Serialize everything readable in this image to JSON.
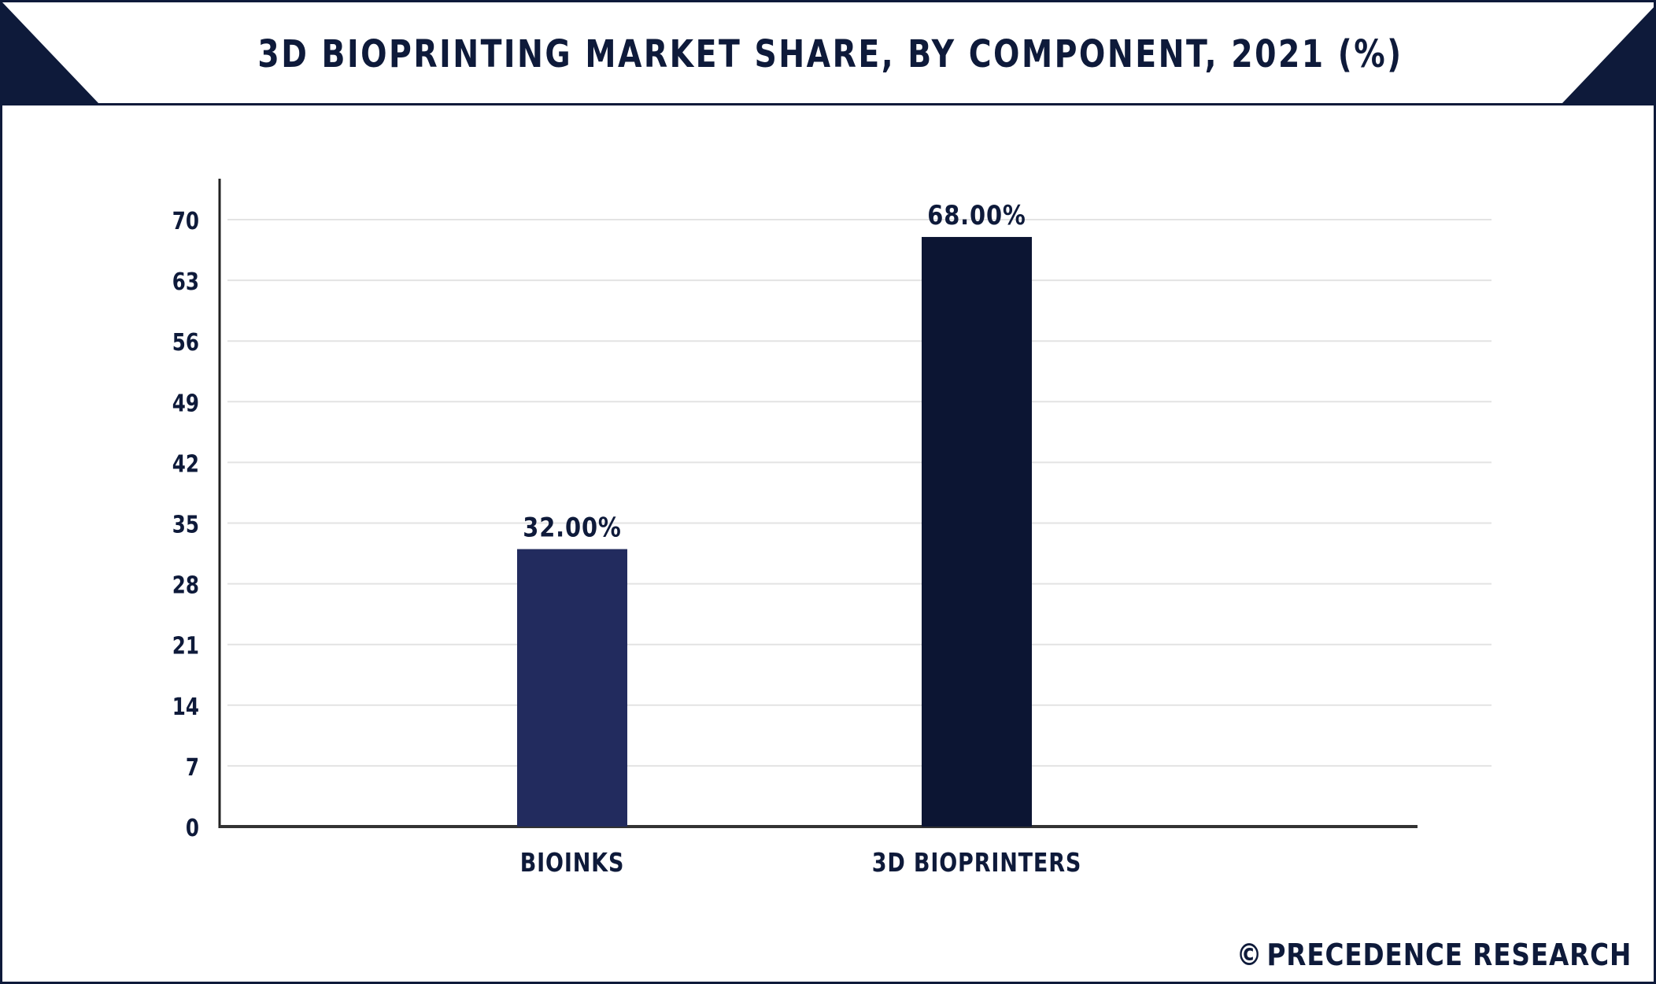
{
  "title": "3D BIOPRINTING MARKET SHARE, BY COMPONENT, 2021 (%)",
  "brand": {
    "symbol": "©",
    "name": "PRECEDENCE RESEARCH"
  },
  "colors": {
    "navy": "#0e1a3a",
    "bar1": "#222b5e",
    "bar2": "#0c1533",
    "grid": "#e3e3e3",
    "accent": "#4a5a96"
  },
  "chart_data": {
    "type": "bar",
    "title": "3D BIOPRINTING MARKET SHARE, BY COMPONENT, 2021 (%)",
    "categories": [
      "BIOINKS",
      "3D BIOPRINTERS"
    ],
    "values": [
      32,
      68
    ],
    "data_labels": [
      "32.00%",
      "68.00%"
    ],
    "bar_colors": [
      "#222b5e",
      "#0c1533"
    ],
    "ylim": [
      0,
      70
    ],
    "yticks": [
      0,
      7,
      14,
      21,
      28,
      35,
      42,
      49,
      56,
      63,
      70
    ],
    "grid": true,
    "legend": "none"
  }
}
